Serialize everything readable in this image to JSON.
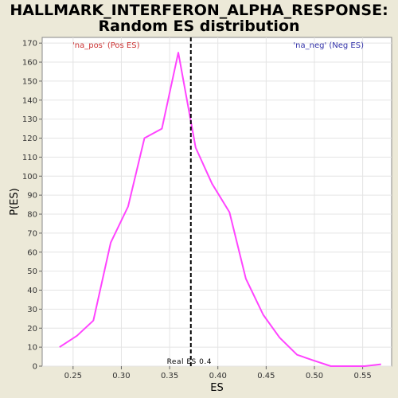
{
  "chart_data": {
    "type": "line",
    "title_line1": "HALLMARK_INTERFERON_ALPHA_RESPONSE:",
    "title_line2": "Random ES distribution",
    "xlabel": "ES",
    "ylabel": "P(ES)",
    "xlim": [
      0.218,
      0.58
    ],
    "ylim": [
      0,
      173
    ],
    "x_ticks": [
      "0.25",
      "0.30",
      "0.35",
      "0.40",
      "0.45",
      "0.50",
      "0.55"
    ],
    "y_ticks": [
      "0",
      "10",
      "20",
      "30",
      "40",
      "50",
      "60",
      "70",
      "80",
      "90",
      "100",
      "110",
      "120",
      "130",
      "140",
      "150",
      "160",
      "170"
    ],
    "grid": true,
    "legend": [
      {
        "label": "'na_pos' (Pos ES)",
        "color": "#cc3333",
        "position": "top-left"
      },
      {
        "label": "'na_neg' (Neg ES)",
        "color": "#3333aa",
        "position": "top-right"
      }
    ],
    "series": [
      {
        "color": "#ff44ff",
        "x": [
          0.236,
          0.254,
          0.271,
          0.289,
          0.307,
          0.324,
          0.342,
          0.359,
          0.377,
          0.394,
          0.412,
          0.429,
          0.447,
          0.464,
          0.482,
          0.499,
          0.517,
          0.534,
          0.552,
          0.569
        ],
        "y": [
          10,
          16,
          24,
          65,
          84,
          120,
          125,
          165,
          115,
          96,
          81,
          46,
          27,
          15,
          6,
          3,
          0,
          0,
          0,
          1
        ]
      }
    ],
    "real_es": {
      "value": 0.372,
      "label": "Real ES 0.4"
    }
  }
}
